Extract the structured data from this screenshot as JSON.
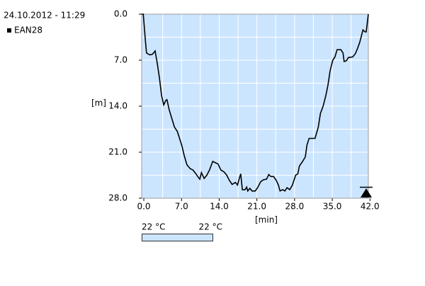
{
  "timestamp": "24.10.2012 - 11:29",
  "chart_data": {
    "type": "line",
    "x_label": "[min]",
    "y_label": "[m]",
    "series": [
      {
        "name": "EAN28",
        "color": "#000000",
        "x": [
          -0.4,
          -0.1,
          0.3,
          0.5,
          1.1,
          1.6,
          2.1,
          2.5,
          2.9,
          3.3,
          3.7,
          4.1,
          4.3,
          4.7,
          5.1,
          5.7,
          6.2,
          6.6,
          7.1,
          7.5,
          8.0,
          8.6,
          9.1,
          9.6,
          10.1,
          10.4,
          10.7,
          11.2,
          11.7,
          12.2,
          12.8,
          13.3,
          13.8,
          14.3,
          14.9,
          15.4,
          15.9,
          16.4,
          17.0,
          17.4,
          17.8,
          18.0,
          18.3,
          18.8,
          19.1,
          19.3,
          19.7,
          20.1,
          20.7,
          21.2,
          21.7,
          22.2,
          22.8,
          23.2,
          23.6,
          24.1,
          24.6,
          25.0,
          25.3,
          25.8,
          26.2,
          26.6,
          27.1,
          27.6,
          28.2,
          28.6,
          28.9,
          29.5,
          30.0,
          30.3,
          30.7,
          31.2,
          31.8,
          32.4,
          32.8,
          33.3,
          33.8,
          34.2,
          34.6,
          35.1,
          35.5,
          35.9,
          36.6,
          37.0,
          37.2,
          37.6,
          38.0,
          38.8,
          39.3,
          39.7,
          40.1,
          40.7,
          41.1,
          41.3,
          41.7
        ],
        "values": [
          0,
          0,
          4.1,
          5.9,
          6.2,
          6.1,
          5.6,
          7.5,
          9.7,
          12.4,
          13.8,
          13.1,
          13.0,
          14.5,
          15.6,
          17.2,
          17.8,
          18.8,
          20.1,
          21.5,
          22.9,
          23.5,
          23.7,
          24.2,
          24.8,
          25.1,
          24.1,
          25.0,
          24.5,
          23.7,
          22.4,
          22.6,
          22.8,
          23.7,
          24.0,
          24.5,
          25.3,
          25.9,
          25.6,
          26.0,
          24.8,
          24.3,
          26.7,
          26.7,
          26.3,
          26.9,
          26.5,
          26.9,
          26.9,
          26.3,
          25.5,
          25.2,
          25.1,
          24.4,
          24.7,
          24.7,
          25.3,
          26.0,
          26.9,
          26.7,
          26.9,
          26.4,
          26.7,
          26.0,
          24.5,
          24.3,
          23.1,
          22.4,
          21.7,
          19.9,
          18.9,
          18.9,
          18.9,
          17.2,
          15.1,
          14.0,
          12.4,
          10.8,
          8.6,
          7.0,
          6.5,
          5.4,
          5.4,
          5.9,
          7.2,
          7.1,
          6.6,
          6.5,
          6.0,
          5.2,
          4.3,
          2.4,
          2.7,
          2.7,
          0
        ]
      }
    ],
    "xlim": [
      -0.4,
      41.7
    ],
    "ylim": [
      28,
      0
    ],
    "y_inverted": true,
    "xticks": [
      {
        "value": 0,
        "label": "0.0"
      },
      {
        "value": 7,
        "label": "7.0"
      },
      {
        "value": 14,
        "label": "14.0"
      },
      {
        "value": 21,
        "label": "21.0"
      },
      {
        "value": 28,
        "label": "28.0"
      },
      {
        "value": 35,
        "label": "35.0"
      },
      {
        "value": 42,
        "label": "42.0"
      }
    ],
    "yticks": [
      {
        "value": 0,
        "label": "0.0"
      },
      {
        "value": 7,
        "label": "7.0"
      },
      {
        "value": 14,
        "label": "14.0"
      },
      {
        "value": 21,
        "label": "21.0"
      },
      {
        "value": 28,
        "label": "28.0"
      }
    ],
    "xgrid": [
      3.5,
      7,
      10.5,
      14,
      17.5,
      21,
      24.5,
      28,
      31.5,
      35,
      38.5
    ],
    "ygrid": [
      3.5,
      7,
      10.5,
      14,
      17.5,
      21,
      24.5
    ],
    "background": "#cce5ff",
    "grid_color": "#ffffff"
  },
  "temp_scale": {
    "left": "22 °C",
    "right": "22 °C"
  }
}
